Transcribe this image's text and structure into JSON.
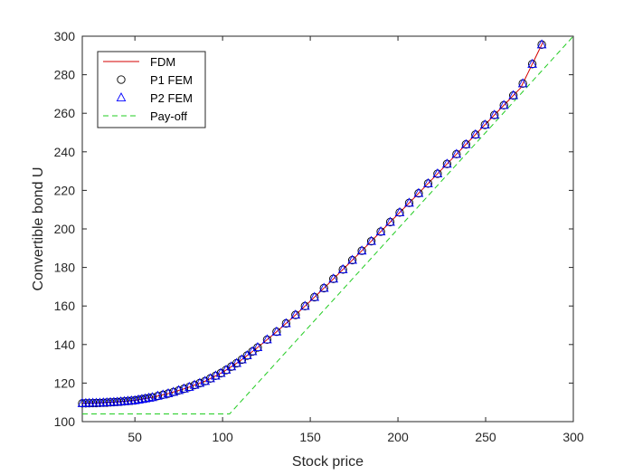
{
  "chart_data": {
    "type": "line",
    "xlabel": "Stock price",
    "ylabel": "Convertible bond U",
    "xlim": [
      20,
      300
    ],
    "ylim": [
      100,
      300
    ],
    "xticks": [
      50,
      100,
      150,
      200,
      250,
      300
    ],
    "yticks": [
      100,
      120,
      140,
      160,
      180,
      200,
      220,
      240,
      260,
      280,
      300
    ],
    "grid": false,
    "legend_position": "top-left",
    "colors": {
      "fdm": "#d40000",
      "p1": "#000000",
      "p2": "#0000ff",
      "payoff": "#22cc22"
    },
    "legend": [
      {
        "label": "FDM",
        "style": "solid-line",
        "color": "#d40000"
      },
      {
        "label": "P1 FEM",
        "style": "circle-marker",
        "color": "#000000"
      },
      {
        "label": "P2 FEM",
        "style": "triangle-marker",
        "color": "#0000ff"
      },
      {
        "label": "Pay-off",
        "style": "dashed-line",
        "color": "#22cc22"
      }
    ],
    "series": [
      {
        "name": "FDM",
        "style": "solid-line",
        "x": [
          20,
          30,
          40,
          50,
          60,
          70,
          80,
          90,
          100,
          110,
          120,
          130,
          140,
          150,
          160,
          170,
          180,
          190,
          200,
          210,
          220,
          230,
          240,
          250,
          260,
          270,
          283
        ],
        "y": [
          109.5,
          109.7,
          110.2,
          111.0,
          112.6,
          114.8,
          117.6,
          121.0,
          125.6,
          131.5,
          138.5,
          146.0,
          154.0,
          162.5,
          171.2,
          180.2,
          189.2,
          198.4,
          207.6,
          216.8,
          226.2,
          235.6,
          245.0,
          254.4,
          263.8,
          273.2,
          297.5
        ]
      },
      {
        "name": "P1 FEM",
        "style": "circle-marker",
        "x": [
          20,
          30,
          40,
          50,
          60,
          70,
          80,
          90,
          100,
          110,
          120,
          130,
          140,
          150,
          160,
          170,
          180,
          190,
          200,
          210,
          220,
          230,
          240,
          250,
          260,
          270,
          283
        ],
        "y": [
          109.5,
          109.7,
          110.2,
          111.0,
          112.6,
          114.8,
          117.6,
          121.0,
          125.6,
          131.5,
          138.5,
          146.0,
          154.0,
          162.5,
          171.2,
          180.2,
          189.2,
          198.4,
          207.6,
          216.8,
          226.2,
          235.6,
          245.0,
          254.4,
          263.8,
          273.2,
          297.5
        ]
      },
      {
        "name": "P2 FEM",
        "style": "triangle-marker",
        "x": [
          20,
          30,
          40,
          50,
          60,
          70,
          80,
          90,
          100,
          110,
          120,
          130,
          140,
          150,
          160,
          170,
          180,
          190,
          200,
          210,
          220,
          230,
          240,
          250,
          260,
          270,
          283
        ],
        "y": [
          109.5,
          109.7,
          110.2,
          111.0,
          112.6,
          114.8,
          117.6,
          121.0,
          125.6,
          131.5,
          138.5,
          146.0,
          154.0,
          162.5,
          171.2,
          180.2,
          189.2,
          198.4,
          207.6,
          216.8,
          226.2,
          235.6,
          245.0,
          254.4,
          263.8,
          273.2,
          297.5
        ]
      },
      {
        "name": "Pay-off",
        "style": "dashed-line",
        "x": [
          20,
          104,
          300
        ],
        "y": [
          104,
          104,
          300
        ]
      }
    ]
  }
}
